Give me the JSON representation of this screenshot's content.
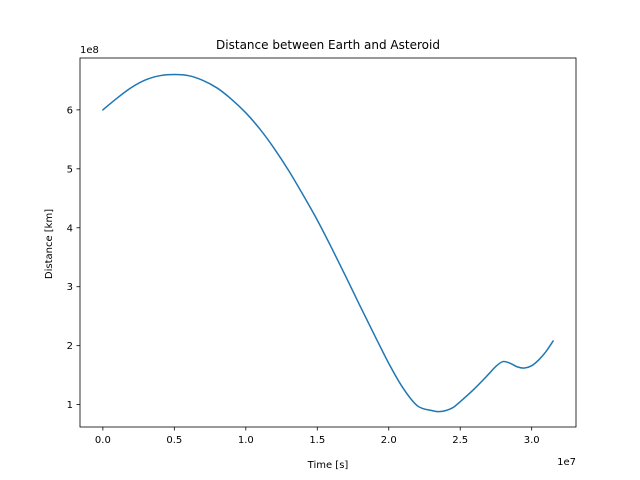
{
  "chart_data": {
    "type": "line",
    "title": "Distance between Earth and Asteroid",
    "xlabel": "Time [s]",
    "ylabel": "Distance [km]",
    "x_offset_label": "1e7",
    "y_offset_label": "1e8",
    "xlim": [
      -0.16,
      3.31
    ],
    "ylim": [
      0.62,
      6.88
    ],
    "x_ticks": [
      0.0,
      0.5,
      1.0,
      1.5,
      2.0,
      2.5,
      3.0
    ],
    "x_tick_labels": [
      "0.0",
      "0.5",
      "1.0",
      "1.5",
      "2.0",
      "2.5",
      "3.0"
    ],
    "y_ticks": [
      1,
      2,
      3,
      4,
      5,
      6
    ],
    "y_tick_labels": [
      "1",
      "2",
      "3",
      "4",
      "5",
      "6"
    ],
    "grid": false,
    "series": [
      {
        "color": "#1f77b4",
        "x": [
          0.0,
          0.1,
          0.2,
          0.3,
          0.4,
          0.5,
          0.6,
          0.7,
          0.8,
          0.9,
          1.0,
          1.1,
          1.2,
          1.3,
          1.4,
          1.5,
          1.6,
          1.7,
          1.8,
          1.9,
          2.0,
          2.1,
          2.2,
          2.3,
          2.35,
          2.4,
          2.45,
          2.5,
          2.6,
          2.7,
          2.75,
          2.8,
          2.85,
          2.9,
          2.95,
          3.0,
          3.05,
          3.1,
          3.15
        ],
        "values": [
          6.0,
          6.2,
          6.38,
          6.51,
          6.58,
          6.6,
          6.58,
          6.5,
          6.37,
          6.18,
          5.95,
          5.67,
          5.34,
          4.97,
          4.56,
          4.13,
          3.66,
          3.17,
          2.67,
          2.18,
          1.7,
          1.28,
          0.98,
          0.9,
          0.88,
          0.9,
          0.95,
          1.05,
          1.27,
          1.52,
          1.65,
          1.73,
          1.7,
          1.64,
          1.62,
          1.66,
          1.76,
          1.9,
          2.08
        ]
      }
    ]
  }
}
